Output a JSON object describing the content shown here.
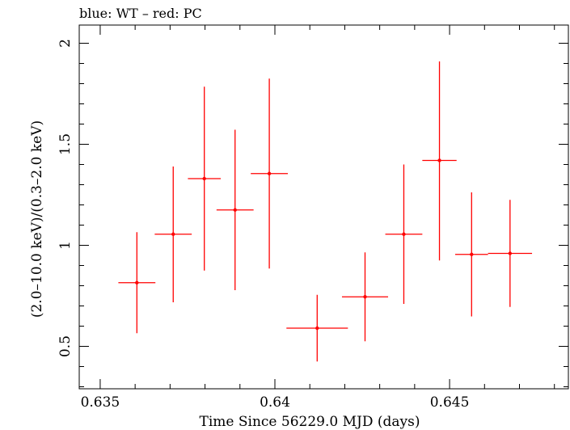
{
  "chart_data": {
    "type": "scatter",
    "title": "blue: WT – red: PC",
    "xlabel": "Time Since 56229.0 MJD (days)",
    "ylabel": "(2.0–10.0 keV)/(0.3–2.0 keV)",
    "xlim": [
      0.6344,
      0.6484
    ],
    "ylim": [
      0.29,
      2.09
    ],
    "xticks": [
      {
        "value": 0.635,
        "label": "0.635"
      },
      {
        "value": 0.64,
        "label": "0.64"
      },
      {
        "value": 0.645,
        "label": "0.645"
      }
    ],
    "yticks": [
      {
        "value": 0.5,
        "label": "0.5"
      },
      {
        "value": 1.0,
        "label": "1"
      },
      {
        "value": 1.5,
        "label": "1.5"
      },
      {
        "value": 2.0,
        "label": "2"
      }
    ],
    "x_minor_step": 0.001,
    "y_minor_step": 0.1,
    "grid": false,
    "series": [
      {
        "color": "#ff0000",
        "points": [
          {
            "x": 0.63605,
            "xerr": 0.00053,
            "y": 0.815,
            "ylo": 0.565,
            "yhi": 1.065
          },
          {
            "x": 0.63709,
            "xerr": 0.00053,
            "y": 1.055,
            "ylo": 0.718,
            "yhi": 1.39
          },
          {
            "x": 0.63798,
            "xerr": 0.00047,
            "y": 1.33,
            "ylo": 0.875,
            "yhi": 1.785
          },
          {
            "x": 0.63886,
            "xerr": 0.00053,
            "y": 1.175,
            "ylo": 0.778,
            "yhi": 1.572
          },
          {
            "x": 0.63984,
            "xerr": 0.00053,
            "y": 1.355,
            "ylo": 0.885,
            "yhi": 1.825
          },
          {
            "x": 0.64121,
            "xerr": 0.00088,
            "y": 0.59,
            "ylo": 0.425,
            "yhi": 0.755
          },
          {
            "x": 0.64258,
            "xerr": 0.00066,
            "y": 0.745,
            "ylo": 0.525,
            "yhi": 0.965
          },
          {
            "x": 0.64369,
            "xerr": 0.00053,
            "y": 1.055,
            "ylo": 0.71,
            "yhi": 1.4
          },
          {
            "x": 0.64471,
            "xerr": 0.00049,
            "y": 1.42,
            "ylo": 0.925,
            "yhi": 1.91
          },
          {
            "x": 0.64563,
            "xerr": 0.00047,
            "y": 0.955,
            "ylo": 0.648,
            "yhi": 1.262
          },
          {
            "x": 0.64673,
            "xerr": 0.00063,
            "y": 0.96,
            "ylo": 0.695,
            "yhi": 1.225
          }
        ]
      }
    ]
  }
}
